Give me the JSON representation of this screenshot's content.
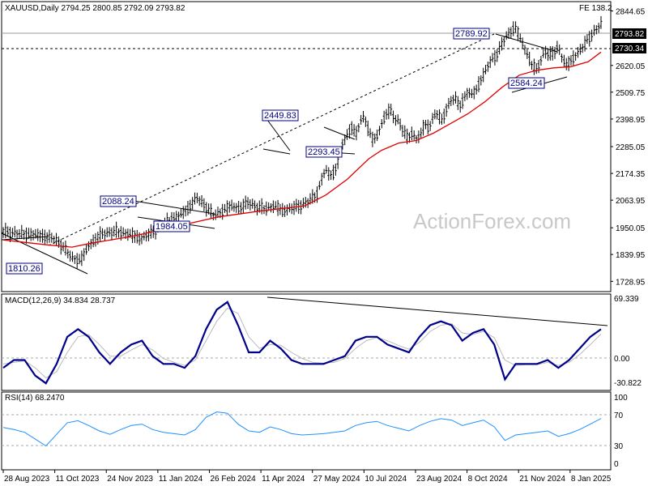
{
  "header": {
    "symbol_line": "XAUUSD,Daily  2794.25 2800.85 2792.09 2793.82",
    "fe_label": "FE 138.2"
  },
  "watermark": "ActionForex.com",
  "chart_data": [
    {
      "type": "candlestick",
      "title": "XAUUSD,Daily",
      "ohlc_last": {
        "open": 2794.25,
        "high": 2800.85,
        "low": 2792.09,
        "close": 2793.82
      },
      "ylim": [
        1700,
        2870
      ],
      "y_ticks": [
        "2844.65",
        "2730.34",
        "2620.05",
        "2509.75",
        "2398.95",
        "2285.05",
        "2174.35",
        "2063.95",
        "1950.05",
        "1839.95",
        "1728.95"
      ],
      "x_ticks": [
        "28 Aug 2023",
        "11 Oct 2023",
        "24 Nov 2023",
        "11 Jan 2024",
        "26 Feb 2024",
        "11 Apr 2024",
        "27 May 2024",
        "10 Jul 2024",
        "23 Aug 2024",
        "8 Oct 2024",
        "21 Nov 2024",
        "8 Jan 2025"
      ],
      "price_tags": {
        "current": "2793.82",
        "level": "2730.34"
      },
      "annotations": [
        "1810.26",
        "2088.24",
        "1984.05",
        "2449.83",
        "2293.45",
        "2789.92",
        "2584.24"
      ],
      "price_path": [
        [
          0,
          1935
        ],
        [
          4,
          1925
        ],
        [
          8,
          1920
        ],
        [
          12,
          1905
        ],
        [
          14,
          1870
        ],
        [
          16,
          1825
        ],
        [
          18,
          1815
        ],
        [
          20,
          1880
        ],
        [
          23,
          1925
        ],
        [
          26,
          1935
        ],
        [
          29,
          1925
        ],
        [
          32,
          1905
        ],
        [
          35,
          1935
        ],
        [
          38,
          1975
        ],
        [
          41,
          2000
        ],
        [
          43,
          2030
        ],
        [
          45,
          2075
        ],
        [
          47,
          2040
        ],
        [
          49,
          2000
        ],
        [
          51,
          2020
        ],
        [
          53,
          2040
        ],
        [
          55,
          2030
        ],
        [
          57,
          2055
        ],
        [
          59,
          2035
        ],
        [
          61,
          2030
        ],
        [
          63,
          2040
        ],
        [
          65,
          2020
        ],
        [
          67,
          2030
        ],
        [
          69,
          2040
        ],
        [
          71,
          2060
        ],
        [
          73,
          2090
        ],
        [
          74,
          2150
        ],
        [
          75,
          2190
        ],
        [
          76,
          2165
        ],
        [
          77,
          2180
        ],
        [
          78,
          2230
        ],
        [
          79,
          2305
        ],
        [
          80,
          2330
        ],
        [
          81,
          2370
        ],
        [
          82,
          2330
        ],
        [
          83,
          2390
        ],
        [
          84,
          2410
        ],
        [
          85,
          2350
        ],
        [
          86,
          2310
        ],
        [
          87,
          2330
        ],
        [
          88,
          2380
        ],
        [
          89,
          2420
        ],
        [
          90,
          2435
        ],
        [
          91,
          2400
        ],
        [
          92,
          2390
        ],
        [
          93,
          2350
        ],
        [
          94,
          2320
        ],
        [
          95,
          2340
        ],
        [
          96,
          2320
        ],
        [
          97,
          2330
        ],
        [
          98,
          2380
        ],
        [
          99,
          2360
        ],
        [
          100,
          2410
        ],
        [
          101,
          2420
        ],
        [
          102,
          2390
        ],
        [
          103,
          2440
        ],
        [
          104,
          2470
        ],
        [
          105,
          2490
        ],
        [
          106,
          2450
        ],
        [
          107,
          2480
        ],
        [
          108,
          2510
        ],
        [
          109,
          2500
        ],
        [
          110,
          2520
        ],
        [
          111,
          2560
        ],
        [
          112,
          2590
        ],
        [
          113,
          2630
        ],
        [
          114,
          2650
        ],
        [
          115,
          2670
        ],
        [
          116,
          2710
        ],
        [
          117,
          2740
        ],
        [
          118,
          2760
        ],
        [
          119,
          2780
        ],
        [
          120,
          2740
        ],
        [
          121,
          2700
        ],
        [
          122,
          2660
        ],
        [
          123,
          2620
        ],
        [
          124,
          2600
        ],
        [
          125,
          2640
        ],
        [
          126,
          2680
        ],
        [
          127,
          2660
        ],
        [
          128,
          2670
        ],
        [
          129,
          2700
        ],
        [
          130,
          2650
        ],
        [
          131,
          2620
        ],
        [
          132,
          2640
        ],
        [
          133,
          2660
        ],
        [
          134,
          2680
        ],
        [
          135,
          2700
        ],
        [
          136,
          2730
        ],
        [
          137,
          2750
        ],
        [
          138,
          2770
        ],
        [
          139,
          2790
        ]
      ],
      "ma_path": [
        [
          0,
          1900
        ],
        [
          10,
          1880
        ],
        [
          16,
          1870
        ],
        [
          20,
          1885
        ],
        [
          30,
          1915
        ],
        [
          40,
          1955
        ],
        [
          50,
          1995
        ],
        [
          60,
          2020
        ],
        [
          70,
          2040
        ],
        [
          75,
          2085
        ],
        [
          80,
          2150
        ],
        [
          85,
          2235
        ],
        [
          88,
          2270
        ],
        [
          92,
          2300
        ],
        [
          96,
          2310
        ],
        [
          100,
          2340
        ],
        [
          104,
          2380
        ],
        [
          108,
          2420
        ],
        [
          112,
          2470
        ],
        [
          116,
          2530
        ],
        [
          120,
          2580
        ],
        [
          124,
          2600
        ],
        [
          128,
          2610
        ],
        [
          132,
          2615
        ],
        [
          136,
          2635
        ],
        [
          139,
          2675
        ]
      ]
    },
    {
      "type": "line",
      "title": "MACD(12,26,9) 34.834 28.737",
      "y_ticks": [
        "69.339",
        "0.00",
        "-30.822"
      ],
      "series": [
        {
          "name": "MACD",
          "values": [
            -15,
            -5,
            -5,
            -25,
            -35,
            -10,
            25,
            35,
            25,
            5,
            -10,
            5,
            15,
            20,
            0,
            -10,
            -10,
            -15,
            0,
            35,
            60,
            70,
            40,
            5,
            5,
            20,
            10,
            -5,
            -10,
            -10,
            -10,
            -5,
            0,
            20,
            25,
            25,
            15,
            10,
            5,
            25,
            40,
            45,
            40,
            20,
            30,
            35,
            15,
            -30,
            -10,
            -10,
            -10,
            -5,
            -15,
            -5,
            10,
            25,
            34.834
          ]
        },
        {
          "name": "Signal",
          "values": [
            -10,
            -8,
            -6,
            -15,
            -28,
            -20,
            5,
            25,
            28,
            15,
            0,
            0,
            8,
            15,
            8,
            -3,
            -8,
            -12,
            -5,
            20,
            45,
            62,
            55,
            25,
            10,
            15,
            14,
            5,
            -3,
            -8,
            -9,
            -8,
            -3,
            10,
            20,
            24,
            20,
            14,
            9,
            18,
            32,
            40,
            42,
            30,
            28,
            32,
            24,
            -5,
            -12,
            -11,
            -11,
            -8,
            -12,
            -8,
            2,
            15,
            28.737
          ]
        }
      ]
    },
    {
      "type": "line",
      "title": "RSI(14) 68.2470",
      "y_ticks": [
        "100",
        "70",
        "30",
        "0"
      ],
      "series": [
        {
          "name": "RSI",
          "values": [
            55,
            52,
            48,
            38,
            28,
            45,
            62,
            65,
            58,
            50,
            45,
            52,
            58,
            60,
            52,
            48,
            46,
            44,
            52,
            70,
            78,
            76,
            60,
            50,
            48,
            56,
            52,
            46,
            44,
            45,
            46,
            48,
            50,
            58,
            62,
            64,
            58,
            54,
            50,
            58,
            64,
            68,
            66,
            58,
            62,
            66,
            56,
            36,
            44,
            46,
            48,
            50,
            42,
            46,
            52,
            60,
            68.247
          ]
        }
      ]
    }
  ]
}
